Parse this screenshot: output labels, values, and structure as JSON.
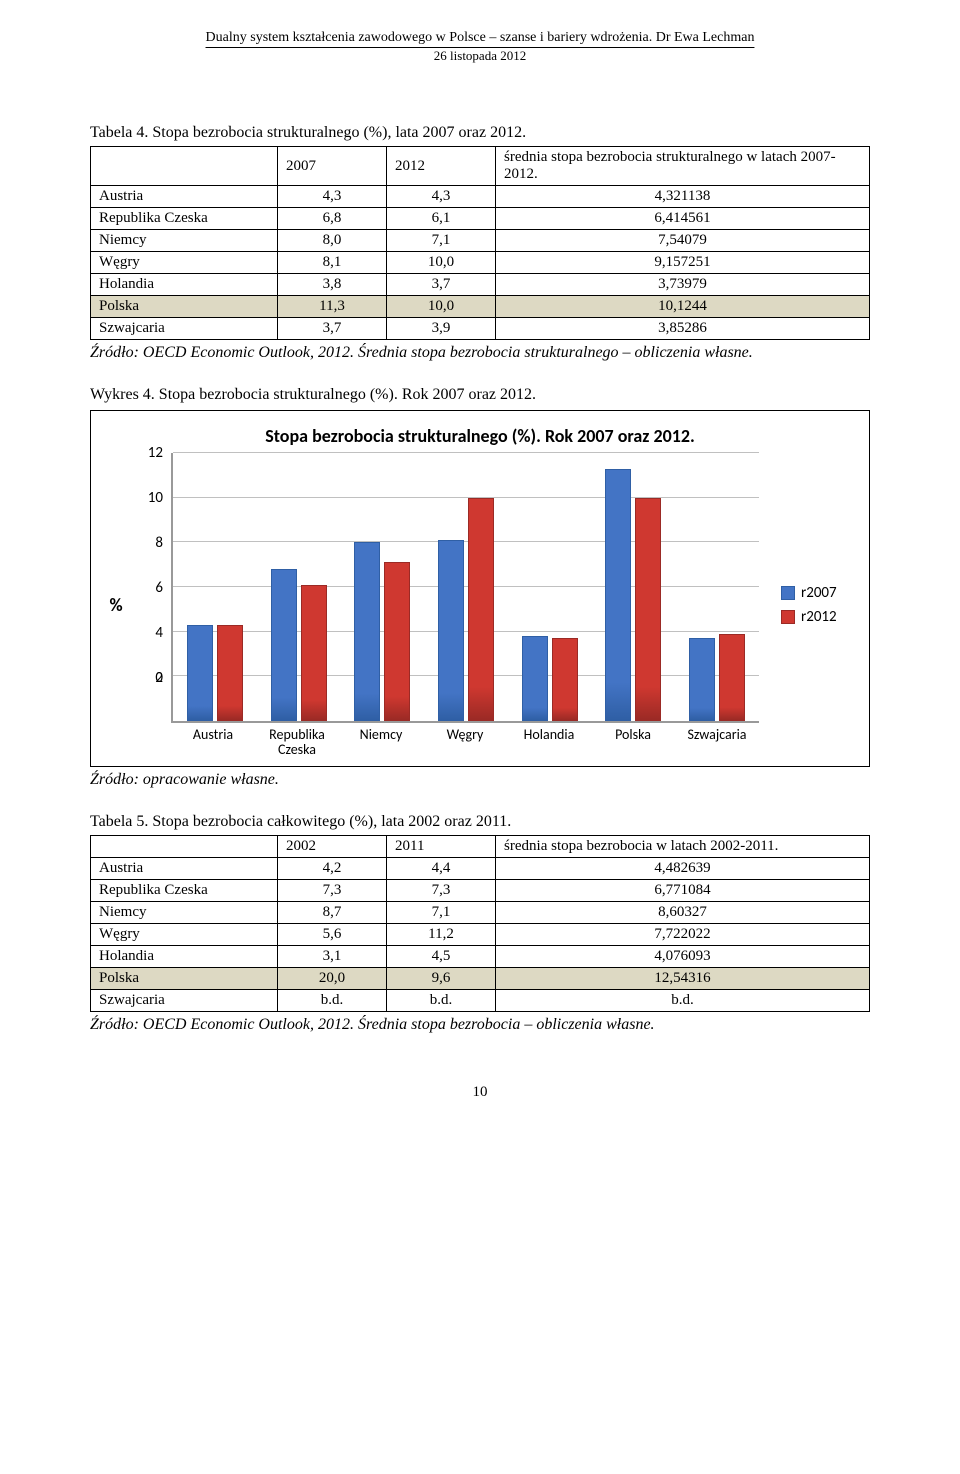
{
  "header": {
    "title": "Dualny system kształcenia zawodowego w Polsce – szanse i bariery wdrożenia. Dr Ewa Lechman",
    "date": "26 listopada 2012"
  },
  "table4": {
    "caption": "Tabela 4. Stopa bezrobocia strukturalnego (%), lata 2007 oraz 2012.",
    "headers": [
      "",
      "2007",
      "2012",
      "średnia stopa bezrobocia strukturalnego w latach 2007-2012."
    ],
    "rows": [
      {
        "name": "Austria",
        "a": "4,3",
        "b": "4,3",
        "c": "4,321138",
        "hl": false
      },
      {
        "name": "Republika Czeska",
        "a": "6,8",
        "b": "6,1",
        "c": "6,414561",
        "hl": false
      },
      {
        "name": "Niemcy",
        "a": "8,0",
        "b": "7,1",
        "c": "7,54079",
        "hl": false
      },
      {
        "name": "Węgry",
        "a": "8,1",
        "b": "10,0",
        "c": "9,157251",
        "hl": false
      },
      {
        "name": "Holandia",
        "a": "3,8",
        "b": "3,7",
        "c": "3,73979",
        "hl": false
      },
      {
        "name": "Polska",
        "a": "11,3",
        "b": "10,0",
        "c": "10,1244",
        "hl": true
      },
      {
        "name": "Szwajcaria",
        "a": "3,7",
        "b": "3,9",
        "c": "3,85286",
        "hl": false
      }
    ],
    "source": "Źródło: OECD Economic Outlook, 2012. Średnia stopa bezrobocia strukturalnego – obliczenia własne."
  },
  "chart": {
    "caption": "Wykres 4. Stopa bezrobocia strukturalnego (%). Rok 2007 oraz 2012.",
    "title": "Stopa bezrobocia strukturalnego (%). Rok 2007 oraz 2012.",
    "type": "bar",
    "ylabel": "%",
    "ymax": 12,
    "yticks": [
      0,
      2,
      4,
      6,
      8,
      10,
      12
    ],
    "grid_color": "#c0c0c0",
    "axis_color": "#999999",
    "background_color": "#ffffff",
    "series": [
      {
        "label": "r2007",
        "fill": "#4374c5",
        "border": "#2f5fa5"
      },
      {
        "label": "r2012",
        "fill": "#cf3830",
        "border": "#9b2a25"
      }
    ],
    "categories": [
      {
        "label": "Austria",
        "values": [
          4.3,
          4.3
        ]
      },
      {
        "label": "Republika\nCzeska",
        "values": [
          6.8,
          6.1
        ]
      },
      {
        "label": "Niemcy",
        "values": [
          8.0,
          7.1
        ]
      },
      {
        "label": "Węgry",
        "values": [
          8.1,
          10.0
        ]
      },
      {
        "label": "Holandia",
        "values": [
          3.8,
          3.7
        ]
      },
      {
        "label": "Polska",
        "values": [
          11.3,
          10.0
        ]
      },
      {
        "label": "Szwajcaria",
        "values": [
          3.7,
          3.9
        ]
      }
    ],
    "source": "Źródło: opracowanie własne."
  },
  "table5": {
    "caption": "Tabela 5. Stopa bezrobocia całkowitego (%), lata 2002 oraz 2011.",
    "headers": [
      "",
      "2002",
      "2011",
      "średnia stopa bezrobocia w latach 2002-2011."
    ],
    "rows": [
      {
        "name": "Austria",
        "a": "4,2",
        "b": "4,4",
        "c": "4,482639",
        "hl": false
      },
      {
        "name": "Republika Czeska",
        "a": "7,3",
        "b": "7,3",
        "c": "6,771084",
        "hl": false
      },
      {
        "name": "Niemcy",
        "a": "8,7",
        "b": "7,1",
        "c": "8,60327",
        "hl": false
      },
      {
        "name": "Węgry",
        "a": "5,6",
        "b": "11,2",
        "c": "7,722022",
        "hl": false
      },
      {
        "name": "Holandia",
        "a": "3,1",
        "b": "4,5",
        "c": "4,076093",
        "hl": false
      },
      {
        "name": "Polska",
        "a": "20,0",
        "b": "9,6",
        "c": "12,54316",
        "hl": true
      },
      {
        "name": "Szwajcaria",
        "a": "b.d.",
        "b": "b.d.",
        "c": "b.d.",
        "hl": false
      }
    ],
    "source": "Źródło: OECD Economic Outlook, 2012. Średnia stopa bezrobocia – obliczenia własne."
  },
  "page_number": "10"
}
